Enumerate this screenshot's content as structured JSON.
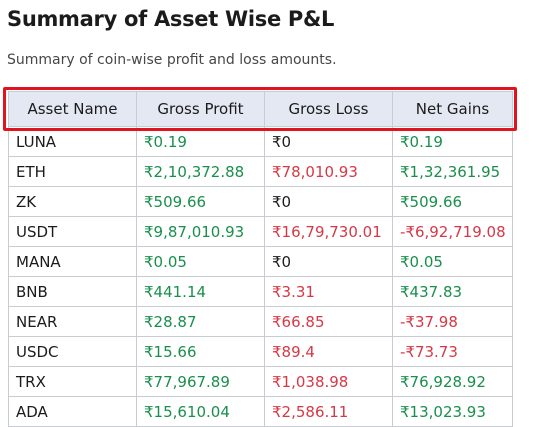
{
  "title": "Summary of Asset Wise P&L",
  "subtitle": "Summary of coin-wise profit and loss amounts.",
  "highlight_color": "#e0141f",
  "colors": {
    "positive": "#1a8f4c",
    "negative": "#d63845",
    "header_bg": "#e3e8f2"
  },
  "table": {
    "headers": [
      "Asset Name",
      "Gross Profit",
      "Gross Loss",
      "Net Gains"
    ],
    "rows": [
      [
        "LUNA",
        "₹0.19",
        "₹0",
        "₹0.19"
      ],
      [
        "ETH",
        "₹2,10,372.88",
        "₹78,010.93",
        "₹1,32,361.95"
      ],
      [
        "ZK",
        "₹509.66",
        "₹0",
        "₹509.66"
      ],
      [
        "USDT",
        "₹9,87,010.93",
        "₹16,79,730.01",
        "-₹6,92,719.08"
      ],
      [
        "MANA",
        "₹0.05",
        "₹0",
        "₹0.05"
      ],
      [
        "BNB",
        "₹441.14",
        "₹3.31",
        "₹437.83"
      ],
      [
        "NEAR",
        "₹28.87",
        "₹66.85",
        "-₹37.98"
      ],
      [
        "USDC",
        "₹15.66",
        "₹89.4",
        "-₹73.73"
      ],
      [
        "TRX",
        "₹77,967.89",
        "₹1,038.98",
        "₹76,928.92"
      ],
      [
        "ADA",
        "₹15,610.04",
        "₹2,586.11",
        "₹13,023.93"
      ]
    ]
  }
}
